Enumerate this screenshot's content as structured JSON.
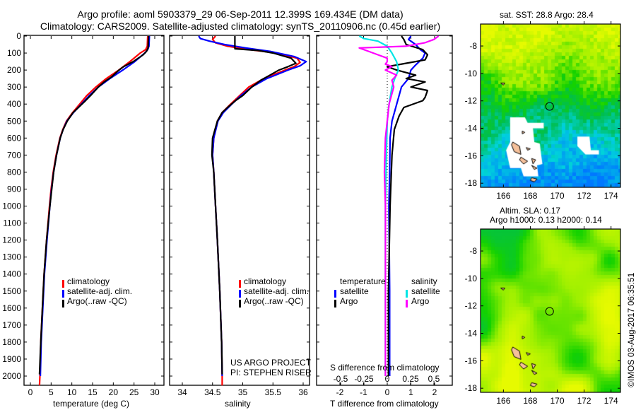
{
  "header": {
    "line1": "Argo profile: aoml 5903379_29 06-Sep-2011 12.399S 169.434E (DM data)",
    "line2": "Climatology: CARS2009. Satellite-adjusted climatology: synTS_20110906.nc (0.45d earlier)"
  },
  "credits": {
    "line1": "US ARGO PROJECT",
    "line2": "PI: STEPHEN RISER"
  },
  "footer": {
    "stamp": "©IMOS 03-Aug-2017 06:35:51"
  },
  "colors": {
    "climatology": "#ff0000",
    "satellite": "#0000ff",
    "argo": "#000000",
    "sal_satellite": "#00e5e5",
    "sal_argo": "#ff00ff"
  },
  "chart_data": [
    {
      "type": "line",
      "id": "temperature",
      "xlabel": "temperature (deg C)",
      "ylabel": "",
      "xlim": [
        -2,
        32
      ],
      "ylim": [
        2055,
        0
      ],
      "xticks": [
        "0",
        "5",
        "10",
        "15",
        "20",
        "25",
        "30"
      ],
      "yticks": [
        "0",
        "100",
        "200",
        "300",
        "400",
        "500",
        "600",
        "700",
        "800",
        "900",
        "1000",
        "1100",
        "1200",
        "1300",
        "1400",
        "1500",
        "1600",
        "1700",
        "1800",
        "1900",
        "2000"
      ],
      "legend": [
        "climatology",
        "satellite-adj. clim.",
        "Argo(..raw -QC)"
      ],
      "series": [
        {
          "name": "climatology",
          "color": "#ff0000",
          "points": [
            [
              0,
              28.3
            ],
            [
              60,
              28.2
            ],
            [
              80,
              27.8
            ],
            [
              100,
              26.5
            ],
            [
              150,
              24
            ],
            [
              200,
              21.3
            ],
            [
              250,
              18.3
            ],
            [
              300,
              15.8
            ],
            [
              350,
              13.6
            ],
            [
              400,
              11.9
            ],
            [
              450,
              10.2
            ],
            [
              500,
              8.7
            ],
            [
              550,
              7.8
            ],
            [
              600,
              7.1
            ],
            [
              700,
              6.2
            ],
            [
              800,
              5.5
            ],
            [
              900,
              5.0
            ],
            [
              1000,
              4.6
            ],
            [
              1200,
              3.9
            ],
            [
              1400,
              3.3
            ],
            [
              1600,
              2.9
            ],
            [
              1800,
              2.5
            ],
            [
              2000,
              2.3
            ],
            [
              2055,
              2.2
            ]
          ]
        },
        {
          "name": "satellite-adj. clim.",
          "color": "#0000ff",
          "points": [
            [
              0,
              28.7
            ],
            [
              60,
              28.6
            ],
            [
              80,
              28.3
            ],
            [
              100,
              27.6
            ],
            [
              150,
              25.2
            ],
            [
              200,
              22.3
            ],
            [
              250,
              19.2
            ],
            [
              300,
              16.4
            ],
            [
              350,
              14.2
            ],
            [
              400,
              12.3
            ],
            [
              450,
              10.4
            ],
            [
              500,
              8.8
            ],
            [
              550,
              7.9
            ],
            [
              600,
              7.2
            ],
            [
              700,
              6.3
            ],
            [
              800,
              5.6
            ],
            [
              900,
              5.1
            ],
            [
              1000,
              4.7
            ],
            [
              1200,
              4.0
            ],
            [
              1400,
              3.4
            ],
            [
              1600,
              3.0
            ],
            [
              1800,
              2.6
            ],
            [
              2000,
              2.4
            ]
          ]
        },
        {
          "name": "Argo(..raw -QC)",
          "color": "#000000",
          "points": [
            [
              0,
              28.5
            ],
            [
              70,
              28.4
            ],
            [
              90,
              28.0
            ],
            [
              110,
              27.2
            ],
            [
              150,
              24.8
            ],
            [
              180,
              22.5
            ],
            [
              200,
              21.4
            ],
            [
              240,
              19.6
            ],
            [
              270,
              17.8
            ],
            [
              300,
              16.4
            ],
            [
              350,
              14.5
            ],
            [
              380,
              13.3
            ],
            [
              420,
              11.6
            ],
            [
              450,
              10.3
            ],
            [
              500,
              8.9
            ],
            [
              550,
              7.9
            ],
            [
              600,
              7.2
            ],
            [
              700,
              6.3
            ],
            [
              800,
              5.6
            ],
            [
              1000,
              4.7
            ],
            [
              1200,
              3.9
            ],
            [
              1400,
              3.3
            ],
            [
              1600,
              2.9
            ],
            [
              1800,
              2.5
            ],
            [
              1990,
              2.2
            ]
          ]
        }
      ]
    },
    {
      "type": "line",
      "id": "salinity",
      "xlabel": "salinity",
      "ylabel": "",
      "xlim": [
        33.85,
        36.1
      ],
      "ylim": [
        2055,
        0
      ],
      "xticks": [
        "34",
        "34.5",
        "35",
        "35.5",
        "36"
      ],
      "legend": [
        "climatology",
        "satellite-adj. clim.",
        "Argo(..raw -QC)"
      ],
      "series": [
        {
          "name": "climatology",
          "color": "#ff0000",
          "points": [
            [
              0,
              34.55
            ],
            [
              20,
              34.5
            ],
            [
              40,
              34.55
            ],
            [
              60,
              34.75
            ],
            [
              80,
              35.1
            ],
            [
              100,
              35.55
            ],
            [
              130,
              35.9
            ],
            [
              155,
              35.95
            ],
            [
              180,
              35.85
            ],
            [
              200,
              35.7
            ],
            [
              250,
              35.35
            ],
            [
              300,
              35.1
            ],
            [
              350,
              34.95
            ],
            [
              400,
              34.8
            ],
            [
              450,
              34.66
            ],
            [
              500,
              34.58
            ],
            [
              600,
              34.52
            ],
            [
              700,
              34.5
            ],
            [
              800,
              34.52
            ],
            [
              1000,
              34.55
            ],
            [
              1200,
              34.58
            ],
            [
              1500,
              34.62
            ],
            [
              1800,
              34.65
            ],
            [
              2000,
              34.66
            ],
            [
              2055,
              34.66
            ]
          ]
        },
        {
          "name": "satellite-adj. clim.",
          "color": "#0000ff",
          "points": [
            [
              0,
              34.27
            ],
            [
              15,
              34.3
            ],
            [
              30,
              34.45
            ],
            [
              50,
              34.7
            ],
            [
              70,
              35.05
            ],
            [
              90,
              35.45
            ],
            [
              120,
              35.85
            ],
            [
              150,
              36.05
            ],
            [
              175,
              35.95
            ],
            [
              200,
              35.75
            ],
            [
              250,
              35.4
            ],
            [
              300,
              35.15
            ],
            [
              350,
              34.97
            ],
            [
              400,
              34.82
            ],
            [
              450,
              34.68
            ],
            [
              500,
              34.59
            ],
            [
              600,
              34.52
            ],
            [
              700,
              34.5
            ],
            [
              800,
              34.52
            ],
            [
              1000,
              34.55
            ],
            [
              1200,
              34.58
            ],
            [
              1500,
              34.62
            ],
            [
              1800,
              34.65
            ],
            [
              2000,
              34.66
            ]
          ]
        },
        {
          "name": "Argo(..raw -QC)",
          "color": "#000000",
          "points": [
            [
              0,
              34.87
            ],
            [
              75,
              34.87
            ],
            [
              85,
              35.25
            ],
            [
              100,
              35.5
            ],
            [
              130,
              35.8
            ],
            [
              160,
              35.88
            ],
            [
              180,
              35.75
            ],
            [
              200,
              35.6
            ],
            [
              230,
              35.45
            ],
            [
              260,
              35.3
            ],
            [
              300,
              35.15
            ],
            [
              350,
              35.0
            ],
            [
              380,
              34.88
            ],
            [
              420,
              34.75
            ],
            [
              450,
              34.66
            ],
            [
              500,
              34.58
            ],
            [
              600,
              34.5
            ],
            [
              700,
              34.49
            ],
            [
              800,
              34.52
            ],
            [
              1000,
              34.55
            ],
            [
              1200,
              34.58
            ],
            [
              1500,
              34.62
            ],
            [
              1800,
              34.65
            ],
            [
              1990,
              34.66
            ]
          ]
        }
      ]
    },
    {
      "type": "line",
      "id": "differences",
      "xlabel": "T difference from climatology",
      "x2label": "S difference from climatology",
      "xlim": [
        -3.0,
        2.8
      ],
      "x2lim": [
        -0.75,
        0.7
      ],
      "ylim": [
        2055,
        0
      ],
      "xticks": [
        "-2",
        "-1",
        "0",
        "1",
        "2"
      ],
      "x2ticks": [
        "-0.5",
        "-0.25",
        "0",
        "0.25",
        "0.5"
      ],
      "legend_titles": [
        "temperature",
        "salinity"
      ],
      "legend_t": [
        "satellite",
        "Argo"
      ],
      "legend_s": [
        "satellite",
        "Argo"
      ],
      "series": [
        {
          "name": "T satellite",
          "axis": "T",
          "color": "#0000ff",
          "points": [
            [
              0,
              1.0
            ],
            [
              20,
              0.9
            ],
            [
              50,
              1.2
            ],
            [
              80,
              1.4
            ],
            [
              100,
              1.6
            ],
            [
              130,
              1.5
            ],
            [
              170,
              1.2
            ],
            [
              200,
              1.0
            ],
            [
              250,
              0.9
            ],
            [
              300,
              0.6
            ],
            [
              400,
              0.4
            ],
            [
              500,
              0.2
            ],
            [
              600,
              0.12
            ],
            [
              800,
              0.1
            ],
            [
              1000,
              0.07
            ],
            [
              1500,
              0.1
            ],
            [
              2000,
              0.1
            ]
          ]
        },
        {
          "name": "T Argo",
          "axis": "T",
          "color": "#000000",
          "points": [
            [
              0,
              0.6
            ],
            [
              20,
              0.7
            ],
            [
              50,
              0.8
            ],
            [
              80,
              1.5
            ],
            [
              110,
              1.7
            ],
            [
              140,
              1.6
            ],
            [
              160,
              0.8
            ],
            [
              180,
              0.0
            ],
            [
              200,
              0.4
            ],
            [
              230,
              1.2
            ],
            [
              250,
              0.8
            ],
            [
              270,
              1.6
            ],
            [
              300,
              1.0
            ],
            [
              320,
              1.7
            ],
            [
              360,
              1.6
            ],
            [
              380,
              1.5
            ],
            [
              420,
              0.7
            ],
            [
              470,
              0.5
            ],
            [
              550,
              0.3
            ],
            [
              700,
              0.2
            ],
            [
              1000,
              0.12
            ],
            [
              1500,
              0.05
            ],
            [
              2000,
              0.05
            ]
          ]
        },
        {
          "name": "S satellite",
          "axis": "S",
          "color": "#00e5e5",
          "points": [
            [
              0,
              -0.3
            ],
            [
              15,
              -0.25
            ],
            [
              30,
              -0.1
            ],
            [
              60,
              0.0
            ],
            [
              100,
              0.05
            ],
            [
              150,
              0.1
            ],
            [
              200,
              0.12
            ],
            [
              250,
              0.08
            ],
            [
              300,
              0.05
            ],
            [
              400,
              0.02
            ],
            [
              500,
              0.0
            ],
            [
              700,
              -0.01
            ],
            [
              1000,
              -0.02
            ],
            [
              2000,
              -0.02
            ]
          ]
        },
        {
          "name": "S Argo",
          "axis": "S",
          "color": "#ff00ff",
          "points": [
            [
              0,
              0.55
            ],
            [
              20,
              0.5
            ],
            [
              40,
              0.4
            ],
            [
              60,
              0.2
            ],
            [
              70,
              -0.3
            ],
            [
              90,
              -0.2
            ],
            [
              110,
              -0.1
            ],
            [
              130,
              0.0
            ],
            [
              150,
              0.0
            ],
            [
              165,
              -0.02
            ],
            [
              180,
              0.05
            ],
            [
              200,
              -0.02
            ],
            [
              230,
              0.1
            ],
            [
              260,
              0.05
            ],
            [
              300,
              0.07
            ],
            [
              400,
              0.02
            ],
            [
              600,
              -0.02
            ],
            [
              800,
              -0.03
            ],
            [
              1000,
              -0.02
            ],
            [
              2000,
              -0.02
            ]
          ]
        }
      ]
    },
    {
      "type": "heatmap",
      "id": "sst_map",
      "title": "sat. SST: 28.8 Argo: 28.4",
      "xlim": [
        164.3,
        174.7
      ],
      "ylim": [
        -18.3,
        -6.4
      ],
      "xticks": [
        "166",
        "168",
        "170",
        "172",
        "174"
      ],
      "yticks": [
        "-8",
        "-10",
        "-12",
        "-14",
        "-16",
        "-18"
      ],
      "float_position": [
        169.434,
        -12.399
      ]
    },
    {
      "type": "heatmap",
      "id": "sla_map",
      "title": "Altim. SLA: 0.17",
      "subtitle": "Argo h1000: 0.13 h2000: 0.14",
      "xlim": [
        164.3,
        174.7
      ],
      "ylim": [
        -18.3,
        -6.4
      ],
      "xticks": [
        "166",
        "168",
        "170",
        "172",
        "174"
      ],
      "yticks": [
        "-8",
        "-10",
        "-12",
        "-14",
        "-16",
        "-18"
      ],
      "float_position": [
        169.434,
        -12.399
      ]
    }
  ]
}
